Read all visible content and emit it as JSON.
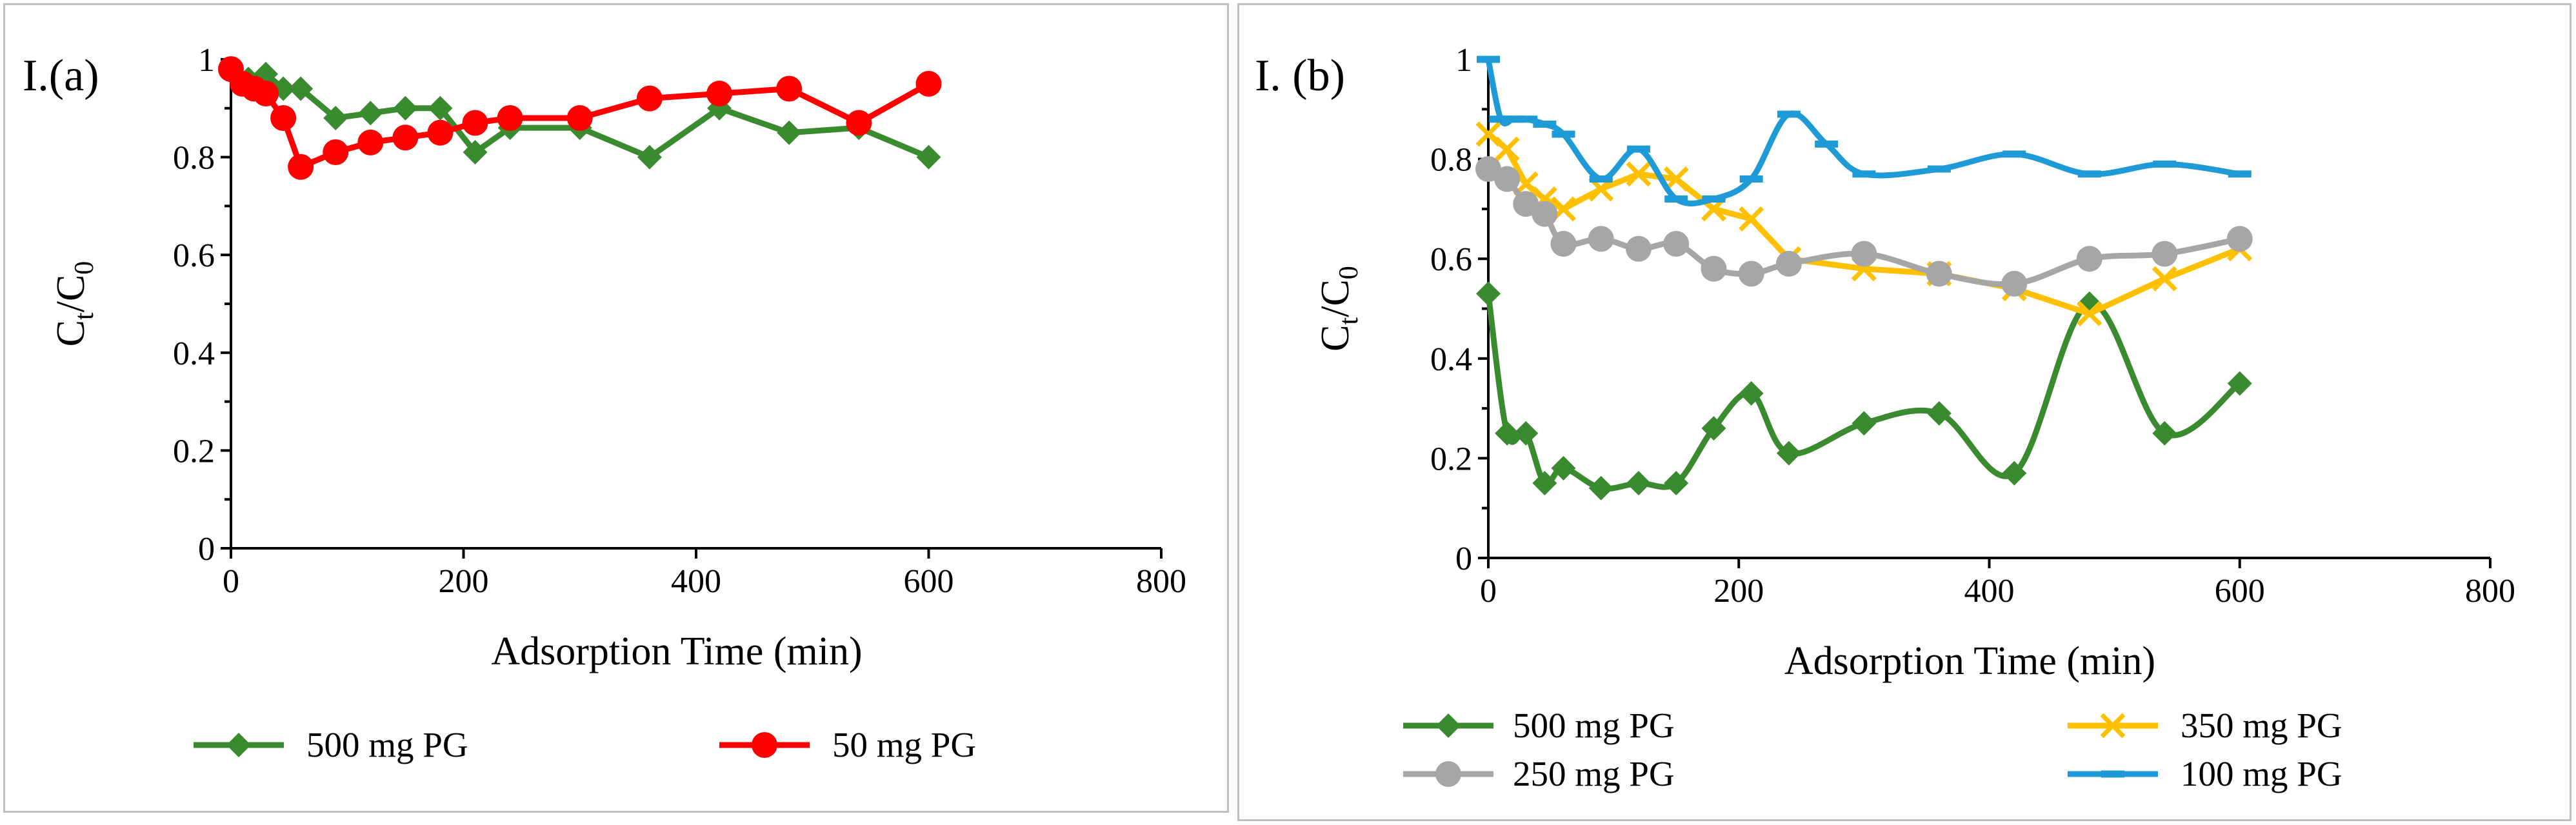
{
  "chart_data": [
    {
      "type": "line",
      "panel_label": "I.(a)",
      "xlabel": "Adsorption Time (min)",
      "ylabel": {
        "main": "C",
        "sub_t": "t",
        "slash": "/C",
        "sub_0": "0"
      },
      "xlim": [
        0,
        800
      ],
      "ylim": [
        0,
        1
      ],
      "xticks": [
        "0",
        "200",
        "400",
        "600",
        "800"
      ],
      "yticks": [
        "0",
        "0.2",
        "0.4",
        "0.6",
        "0.8",
        "1"
      ],
      "grid": false,
      "legend_position": "bottom",
      "series": [
        {
          "name": "500 mg PG",
          "color": "#3a8a2f",
          "marker": "diamond",
          "smooth": false,
          "x": [
            0,
            15,
            30,
            45,
            60,
            90,
            120,
            150,
            180,
            210,
            240,
            300,
            360,
            420,
            480,
            540,
            600
          ],
          "y": [
            0.98,
            0.96,
            0.97,
            0.94,
            0.94,
            0.88,
            0.89,
            0.9,
            0.9,
            0.81,
            0.86,
            0.86,
            0.8,
            0.9,
            0.85,
            0.86,
            0.8
          ]
        },
        {
          "name": "50 mg PG",
          "color": "#ff0000",
          "marker": "circle",
          "smooth": false,
          "x": [
            0,
            10,
            20,
            30,
            45,
            60,
            90,
            120,
            150,
            180,
            210,
            240,
            300,
            360,
            420,
            480,
            540,
            600
          ],
          "y": [
            0.98,
            0.95,
            0.94,
            0.93,
            0.88,
            0.78,
            0.81,
            0.83,
            0.84,
            0.85,
            0.87,
            0.88,
            0.88,
            0.92,
            0.93,
            0.94,
            0.87,
            0.95
          ]
        }
      ]
    },
    {
      "type": "line",
      "panel_label": "I. (b)",
      "xlabel": "Adsorption Time (min)",
      "ylabel": {
        "main": "C",
        "sub_t": "t",
        "slash": "/C",
        "sub_0": "0"
      },
      "xlim": [
        0,
        800
      ],
      "ylim": [
        0,
        1
      ],
      "xticks": [
        "0",
        "200",
        "400",
        "600",
        "800"
      ],
      "yticks": [
        "0",
        "0.2",
        "0.4",
        "0.6",
        "0.8",
        "1"
      ],
      "grid": false,
      "legend_position": "bottom",
      "series": [
        {
          "name": "500 mg PG",
          "color": "#3a8a2f",
          "marker": "diamond",
          "smooth": true,
          "x": [
            0,
            15,
            30,
            45,
            60,
            90,
            120,
            150,
            180,
            210,
            240,
            300,
            360,
            420,
            480,
            540,
            600
          ],
          "y": [
            0.53,
            0.25,
            0.25,
            0.15,
            0.18,
            0.14,
            0.15,
            0.15,
            0.26,
            0.33,
            0.21,
            0.27,
            0.29,
            0.17,
            0.51,
            0.25,
            0.35
          ]
        },
        {
          "name": "350 mg PG",
          "color": "#ffc000",
          "marker": "x",
          "smooth": false,
          "x": [
            0,
            15,
            30,
            45,
            60,
            90,
            120,
            150,
            180,
            210,
            240,
            300,
            360,
            420,
            480,
            540,
            600
          ],
          "y": [
            0.85,
            0.82,
            0.75,
            0.72,
            0.7,
            0.74,
            0.77,
            0.76,
            0.7,
            0.68,
            0.6,
            0.58,
            0.57,
            0.54,
            0.49,
            0.56,
            0.62
          ]
        },
        {
          "name": "250 mg PG",
          "color": "#a6a6a6",
          "marker": "circle",
          "smooth": true,
          "x": [
            0,
            15,
            30,
            45,
            60,
            90,
            120,
            150,
            180,
            210,
            240,
            300,
            360,
            420,
            480,
            540,
            600
          ],
          "y": [
            0.78,
            0.76,
            0.71,
            0.69,
            0.63,
            0.64,
            0.62,
            0.63,
            0.58,
            0.57,
            0.59,
            0.61,
            0.57,
            0.55,
            0.6,
            0.61,
            0.64
          ]
        },
        {
          "name": "100 mg PG",
          "color": "#1e9bd7",
          "marker": "dash",
          "smooth": true,
          "x": [
            0,
            10,
            20,
            30,
            45,
            60,
            90,
            120,
            150,
            180,
            210,
            240,
            270,
            300,
            360,
            420,
            480,
            540,
            600
          ],
          "y": [
            1.0,
            0.88,
            0.88,
            0.88,
            0.87,
            0.85,
            0.76,
            0.82,
            0.72,
            0.72,
            0.76,
            0.89,
            0.83,
            0.77,
            0.78,
            0.81,
            0.77,
            0.79,
            0.77
          ]
        }
      ]
    }
  ]
}
